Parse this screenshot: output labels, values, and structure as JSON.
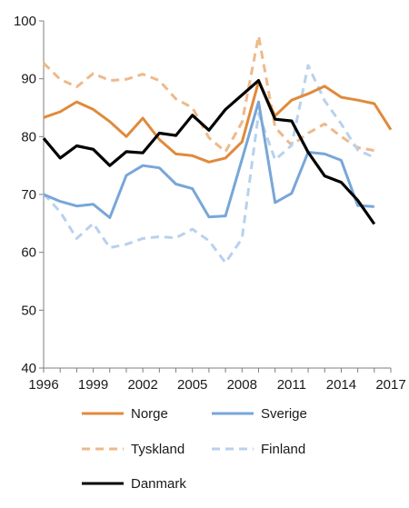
{
  "chart_data": {
    "type": "line",
    "title": "",
    "xlabel": "",
    "ylabel": "",
    "ylim": [
      40,
      100
    ],
    "yticks": [
      "40",
      "50",
      "60",
      "70",
      "80",
      "90",
      "100"
    ],
    "xlim": [
      1996,
      2017
    ],
    "xticks": [
      "1996",
      "1999",
      "2002",
      "2005",
      "2008",
      "2011",
      "2014",
      "2017"
    ],
    "grid": false,
    "legend_position": "bottom",
    "x": [
      1996,
      1997,
      1998,
      1999,
      2000,
      2001,
      2002,
      2003,
      2004,
      2005,
      2006,
      2007,
      2008,
      2009,
      2010,
      2011,
      2012,
      2013,
      2014,
      2015,
      2016,
      2017
    ],
    "series": [
      {
        "name": "Norge",
        "color": "#e08a3c",
        "dash": "solid",
        "values": [
          83.3,
          84.3,
          86.0,
          84.7,
          82.6,
          80.0,
          83.2,
          79.5,
          77.0,
          76.7,
          75.6,
          76.3,
          79.1,
          89.5,
          83.6,
          86.3,
          87.4,
          88.7,
          86.8,
          86.3,
          85.7,
          81.2
        ]
      },
      {
        "name": "Sverige",
        "color": "#78a6d8",
        "dash": "solid",
        "values": [
          70.0,
          68.8,
          68.0,
          68.3,
          66.0,
          73.3,
          75.0,
          74.6,
          71.8,
          71.0,
          66.1,
          66.3,
          76.1,
          86.0,
          68.6,
          70.2,
          77.3,
          77.0,
          75.9,
          68.1,
          67.9,
          null
        ]
      },
      {
        "name": "Tyskland",
        "color": "#eeb98a",
        "dash": "dashed",
        "values": [
          92.7,
          89.9,
          88.6,
          90.9,
          89.7,
          89.9,
          90.8,
          89.7,
          86.5,
          85.0,
          79.8,
          77.4,
          82.5,
          97.4,
          81.6,
          78.5,
          80.6,
          82.2,
          80.0,
          78.1,
          77.6,
          null
        ]
      },
      {
        "name": "Finland",
        "color": "#b8d1ee",
        "dash": "dashed",
        "values": [
          70.1,
          67.0,
          62.4,
          65.0,
          60.8,
          61.4,
          62.4,
          62.7,
          62.5,
          64.0,
          62.0,
          58.2,
          62.4,
          84.0,
          76.0,
          78.5,
          92.3,
          86.2,
          82.2,
          77.7,
          76.4,
          null
        ]
      },
      {
        "name": "Danmark",
        "color": "#000000",
        "dash": "solid",
        "values": [
          79.7,
          76.3,
          78.4,
          77.8,
          75.0,
          77.4,
          77.2,
          80.6,
          80.2,
          83.7,
          81.1,
          84.7,
          87.2,
          89.7,
          83.0,
          82.7,
          77.3,
          73.2,
          72.1,
          69.0,
          64.9,
          null
        ]
      }
    ]
  }
}
